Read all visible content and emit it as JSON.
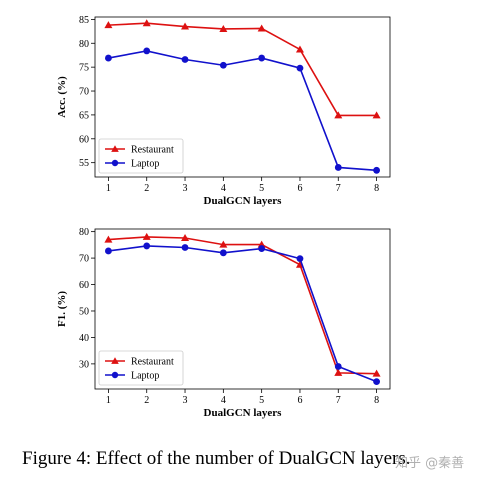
{
  "caption": "Figure 4: Effect of the number of DualGCN layers.",
  "watermark": "知乎 @秦善",
  "colors": {
    "restaurant": "#dd1111",
    "laptop": "#1111cc"
  },
  "chart_data": [
    {
      "type": "line",
      "xlabel": "DualGCN layers",
      "ylabel": "Acc. (%)",
      "x": [
        1,
        2,
        3,
        4,
        5,
        6,
        7,
        8
      ],
      "ylim": [
        52,
        85.5
      ],
      "yticks": [
        55,
        60,
        65,
        70,
        75,
        80,
        85
      ],
      "legend_position": "lower-left",
      "grid": false,
      "series": [
        {
          "name": "Restaurant",
          "marker": "triangle",
          "values": [
            83.8,
            84.2,
            83.5,
            83.0,
            83.1,
            78.7,
            64.9,
            64.9
          ]
        },
        {
          "name": "Laptop",
          "marker": "circle",
          "values": [
            76.9,
            78.4,
            76.6,
            75.4,
            76.9,
            74.8,
            54.0,
            53.4
          ]
        }
      ]
    },
    {
      "type": "line",
      "xlabel": "DualGCN layers",
      "ylabel": "F1. (%)",
      "x": [
        1,
        2,
        3,
        4,
        5,
        6,
        7,
        8
      ],
      "ylim": [
        20.5,
        81
      ],
      "yticks": [
        30,
        40,
        50,
        60,
        70,
        80
      ],
      "legend_position": "lower-left",
      "grid": false,
      "series": [
        {
          "name": "Restaurant",
          "marker": "triangle",
          "values": [
            77.0,
            78.0,
            77.6,
            75.1,
            75.1,
            67.5,
            26.6,
            26.3
          ]
        },
        {
          "name": "Laptop",
          "marker": "circle",
          "values": [
            72.7,
            74.6,
            74.0,
            72.0,
            73.6,
            69.8,
            29.0,
            23.3
          ]
        }
      ]
    }
  ]
}
